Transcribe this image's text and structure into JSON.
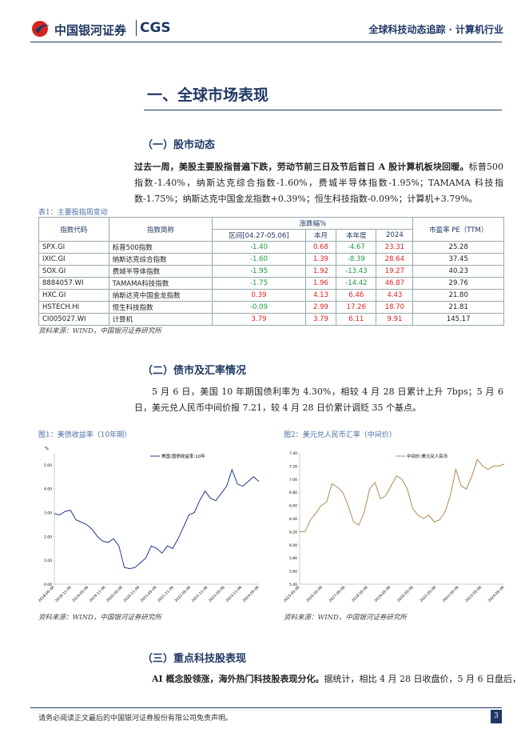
{
  "header": {
    "logo": "中国银河证券",
    "logo_en": "CGS",
    "right": "全球科技动态追踪 · 计算机行业"
  },
  "section": {
    "title": "一、全球市场表现"
  },
  "sub1": {
    "title": "（一）股市动态",
    "para_bold": "过去一周，美股主要股指普遍下跌，劳动节前三日及节后首日 A 股计算机板块回暖。",
    "para": "标普500 指数-1.40%，纳斯达克综合指数-1.60%，费城半导体指数-1.95%；TAMAMA 科技指数-1.75%；纳斯达克中国金龙指数+0.39%；恒生科技指数-0.09%；计算机+3.79%。"
  },
  "table": {
    "caption": "表1：主要股指周变动",
    "group": "涨跌幅%",
    "headers": [
      "指数代码",
      "指数简称",
      "区间[04.27-05.06]",
      "本月",
      "本年度",
      "2024",
      "市盈率 PE（TTM）"
    ],
    "rows": [
      [
        "SPX.GI",
        "标普500指数",
        "-1.40",
        "0.68",
        "-4.67",
        "23.31",
        "25.28"
      ],
      [
        "IXIC.GI",
        "纳斯达克综合指数",
        "-1.60",
        "1.39",
        "-8.39",
        "28.64",
        "37.45"
      ],
      [
        "SOX.GI",
        "费城半导体指数",
        "-1.95",
        "1.92",
        "-13.43",
        "19.27",
        "40.23"
      ],
      [
        "8884057.WI",
        "TAMAMA科技指数",
        "-1.75",
        "1.96",
        "-14.42",
        "46.87",
        "29.76"
      ],
      [
        "HXC.GI",
        "纳斯达克中国金龙指数",
        "0.39",
        "4.13",
        "6.46",
        "4.43",
        "21.80"
      ],
      [
        "HSTECH.HI",
        "恒生科技指数",
        "-0.09",
        "2.99",
        "17.26",
        "18.70",
        "21.81"
      ],
      [
        "CI005027.WI",
        "计算机",
        "3.79",
        "3.79",
        "6.11",
        "9.91",
        "145.17"
      ]
    ],
    "source": "资料来源：WIND，中国银河证券研究所"
  },
  "sub2": {
    "title": "（二）债市及汇率情况",
    "para": "5 月 6 日，美国 10 年期国债利率为 4.30%，相较 4 月 28 日累计上升 7bps；5 月 6 日，美元兑人民币中间价报 7.21，较 4 月 28 日价累计调贬 35 个基点。"
  },
  "figures": [
    {
      "caption": "图1：美债收益率（10年期）",
      "source": "资料来源：WIND，中国银河证券研究所",
      "chart": {
        "type": "line",
        "y_unit": "%",
        "ylim": [
          0,
          5.5
        ],
        "yticks": [
          {
            "value": 0,
            "label": "0.00"
          },
          {
            "value": 1,
            "label": "1.00"
          },
          {
            "value": 2,
            "label": "2.00"
          },
          {
            "value": 3,
            "label": "3.00"
          },
          {
            "value": 4,
            "label": "4.00"
          },
          {
            "value": 5,
            "label": "5.00"
          }
        ],
        "xticks": [
          "2018-05-06",
          "2018-11-06",
          "2019-05-06",
          "2019-11-06",
          "2020-05-06",
          "2020-11-06",
          "2021-05-06",
          "2021-11-06",
          "2022-05-06",
          "2022-11-06",
          "2023-05-06",
          "2023-11-06",
          "2024-05-06"
        ],
        "series": [
          {
            "name": "美国:国债收益率:10年",
            "color": "#1f3a8a",
            "values": [
              2.95,
              2.9,
              3.05,
              3.1,
              2.7,
              2.6,
              2.5,
              2.3,
              2.0,
              1.8,
              1.75,
              1.9,
              1.6,
              0.7,
              0.65,
              0.7,
              0.9,
              1.1,
              1.6,
              1.5,
              1.3,
              1.6,
              1.5,
              1.9,
              2.4,
              2.9,
              3.0,
              3.5,
              3.9,
              3.6,
              3.5,
              3.8,
              4.1,
              4.8,
              4.2,
              4.1,
              4.3,
              4.5,
              4.3
            ]
          }
        ]
      }
    },
    {
      "caption": "图2：美元兑人民币汇率（中间价）",
      "source": "资料来源：WIND，中国银河证券研究所",
      "chart": {
        "type": "line",
        "ylim": [
          5.4,
          7.4
        ],
        "yticks": [
          {
            "value": 5.4,
            "label": "5.40"
          },
          {
            "value": 5.6,
            "label": "5.60"
          },
          {
            "value": 5.8,
            "label": "5.80"
          },
          {
            "value": 6.0,
            "label": "6.00"
          },
          {
            "value": 6.2,
            "label": "6.20"
          },
          {
            "value": 6.4,
            "label": "6.40"
          },
          {
            "value": 6.6,
            "label": "6.60"
          },
          {
            "value": 6.8,
            "label": "6.80"
          },
          {
            "value": 7.0,
            "label": "7.00"
          },
          {
            "value": 7.2,
            "label": "7.20"
          },
          {
            "value": 7.4,
            "label": "7.40"
          }
        ],
        "xticks": [
          "2015-05-06",
          "2016-05-06",
          "2017-05-06",
          "2018-05-06",
          "2019-05-06",
          "2020-05-06",
          "2021-05-06",
          "2022-05-06",
          "2023-05-06",
          "2024-05-06"
        ],
        "series": [
          {
            "name": "中间价:美元兑人民币",
            "color": "#b08850",
            "values": [
              6.2,
              6.2,
              6.38,
              6.48,
              6.6,
              6.65,
              6.93,
              6.88,
              6.8,
              6.6,
              6.35,
              6.3,
              6.5,
              6.85,
              6.95,
              6.7,
              6.75,
              6.9,
              7.05,
              7.0,
              6.85,
              6.55,
              6.45,
              6.4,
              6.45,
              6.35,
              6.38,
              6.5,
              6.75,
              7.15,
              6.9,
              6.85,
              7.05,
              7.3,
              7.2,
              7.15,
              7.2,
              7.2,
              7.23
            ]
          }
        ]
      }
    }
  ],
  "sub3": {
    "title": "（三）重点科技股表现",
    "para_bold": "AI 概念股领涨，海外热门科技股表现分化。",
    "para": "据统计，相比 4 月 28 日收盘价，5 月 6 日盘后，"
  },
  "footer": {
    "disclaimer": "请务必阅读正文最后的中国银河证券股份有限公司免责声明。",
    "page": "3"
  }
}
